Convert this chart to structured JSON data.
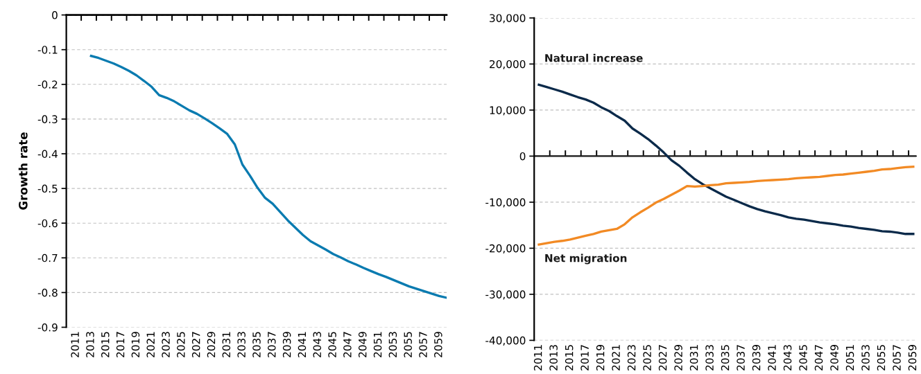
{
  "chart_data": [
    {
      "type": "line",
      "ylabel": "Growth rate",
      "categories": [
        "2011",
        null,
        "2013",
        null,
        "2015",
        null,
        "2017",
        null,
        "2019",
        null,
        "2021",
        null,
        "2023",
        null,
        "2025",
        null,
        "2027",
        null,
        "2029",
        null,
        "2031",
        null,
        "2033",
        null,
        "2035",
        null,
        "2037",
        null,
        "2039",
        null,
        "2041",
        null,
        "2043",
        null,
        "2045",
        null,
        "2047",
        null,
        "2049",
        null,
        "2051",
        null,
        "2053",
        null,
        "2055",
        null,
        "2057",
        null,
        "2059",
        null
      ],
      "series": [
        {
          "color": "#0a7bb0",
          "values": [
            null,
            null,
            -0.118,
            -0.124,
            -0.132,
            -0.14,
            -0.15,
            -0.161,
            -0.174,
            -0.19,
            -0.207,
            -0.231,
            -0.239,
            -0.249,
            -0.262,
            -0.275,
            -0.285,
            -0.298,
            -0.312,
            -0.327,
            -0.343,
            -0.373,
            -0.431,
            -0.463,
            -0.498,
            -0.527,
            -0.544,
            -0.568,
            -0.592,
            -0.613,
            -0.634,
            -0.652,
            -0.664,
            -0.676,
            -0.689,
            -0.699,
            -0.71,
            -0.719,
            -0.729,
            -0.738,
            -0.747,
            -0.755,
            -0.764,
            -0.773,
            -0.782,
            -0.789,
            -0.796,
            -0.803,
            -0.81,
            -0.815
          ]
        }
      ],
      "ylim": [
        -0.9,
        0
      ],
      "yticks": [
        0,
        {
          "value": -0.1,
          "label": "-0.1"
        },
        {
          "value": -0.2,
          "label": "-0.2"
        },
        {
          "value": -0.3,
          "label": "-0.3"
        },
        {
          "value": -0.4,
          "label": "-0.4"
        },
        {
          "value": -0.5,
          "label": "-0.5"
        },
        {
          "value": -0.6,
          "label": "-0.6"
        },
        {
          "value": -0.7,
          "label": "-0.7"
        },
        {
          "value": -0.8,
          "label": "-0.8"
        },
        {
          "value": -0.9,
          "label": "-0.9"
        }
      ],
      "grid": "y"
    },
    {
      "type": "line",
      "categories": [
        "2011",
        null,
        "2013",
        null,
        "2015",
        null,
        "2017",
        null,
        "2019",
        null,
        "2021",
        null,
        "2023",
        null,
        "2025",
        null,
        "2027",
        null,
        "2029",
        null,
        "2031",
        null,
        "2033",
        null,
        "2035",
        null,
        "2037",
        null,
        "2039",
        null,
        "2041",
        null,
        "2043",
        null,
        "2045",
        null,
        "2047",
        null,
        "2049",
        null,
        "2051",
        null,
        "2053",
        null,
        "2055",
        null,
        "2057",
        null,
        "2059"
      ],
      "series": [
        {
          "name": "Natural increase",
          "color": "#0b2a4a",
          "values": [
            15500,
            15000,
            14500,
            14000,
            13400,
            12800,
            12300,
            11600,
            10600,
            9800,
            8700,
            7700,
            6000,
            4900,
            3700,
            2300,
            800,
            -900,
            -2100,
            -3600,
            -5000,
            -6100,
            -7000,
            -7900,
            -8800,
            -9500,
            -10200,
            -10900,
            -11500,
            -12000,
            -12400,
            -12800,
            -13300,
            -13600,
            -13800,
            -14100,
            -14400,
            -14600,
            -14800,
            -15100,
            -15300,
            -15600,
            -15800,
            -16000,
            -16300,
            -16400,
            -16600,
            -16900,
            -16900
          ]
        },
        {
          "name": "Net migration",
          "color": "#f28a24",
          "values": [
            -19200,
            -18900,
            -18600,
            -18400,
            -18100,
            -17700,
            -17300,
            -16900,
            -16400,
            -16100,
            -15800,
            -14800,
            -13300,
            -12200,
            -11200,
            -10100,
            -9300,
            -8400,
            -7500,
            -6500,
            -6600,
            -6500,
            -6300,
            -6200,
            -5900,
            -5800,
            -5700,
            -5600,
            -5400,
            -5300,
            -5200,
            -5100,
            -5000,
            -4800,
            -4700,
            -4600,
            -4500,
            -4300,
            -4100,
            -4000,
            -3800,
            -3600,
            -3400,
            -3200,
            -2900,
            -2800,
            -2600,
            -2400,
            -2300
          ]
        }
      ],
      "ylim": [
        -40000,
        30000
      ],
      "yticks": [
        {
          "value": 30000,
          "label": "30,000"
        },
        {
          "value": 20000,
          "label": "20,000"
        },
        {
          "value": 10000,
          "label": "10,000"
        },
        0,
        {
          "value": -10000,
          "label": "-10,000"
        },
        {
          "value": -20000,
          "label": "-20,000"
        },
        {
          "value": -30000,
          "label": "-30,000"
        },
        {
          "value": -40000,
          "label": "-40,000"
        }
      ],
      "grid": "y",
      "ref_lines": [
        {
          "axis": "y",
          "value": 0,
          "color": "#1a1a1a"
        }
      ]
    }
  ]
}
